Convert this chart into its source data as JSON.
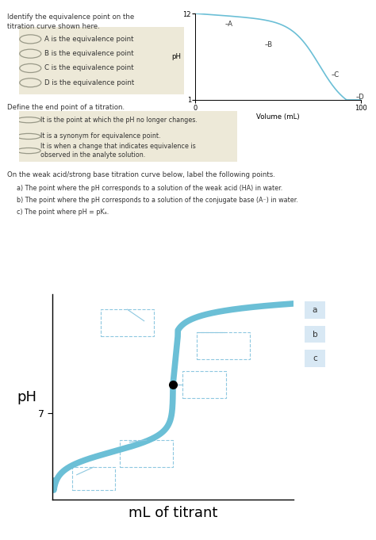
{
  "bg_color": "#ede9d8",
  "white": "#ffffff",
  "text_color": "#333333",
  "curve_color": "#6bbfd6",
  "q1_title": "Identify the equivalence point on the\ntitration curve shown here.",
  "q1_options": [
    "A is the equivalence point",
    "B is the equivalence point",
    "C is the equivalence point",
    "D is the equivalence point"
  ],
  "q1_xlabel": "Volume (mL)",
  "q1_ylabel": "pH",
  "q1_yticks": [
    1,
    12
  ],
  "q1_xticks": [
    0,
    100
  ],
  "q2_title": "Define the end point of a titration.",
  "q2_options": [
    "It is the point at which the pH no longer changes.",
    "It is a synonym for equivalence point.",
    "It is when a change that indicates equivalence is\nobserved in the analyte solution."
  ],
  "q3_title": "On the weak acid/strong base titration curve below, label the following points.",
  "q3_lines": [
    "a) The point where the pH corresponds to a solution of the weak acid (HA) in water.",
    "b) The point where the pH corresponds to a solution of the conjugate base (A⁻) in water.",
    "c) The point where pH = pKₐ."
  ],
  "q3_xlabel": "mL of titrant",
  "q3_ylabel": "pH",
  "q3_ytick": 7,
  "q3_labels": [
    "a",
    "b",
    "c"
  ],
  "label_bg": "#d8e8f4"
}
